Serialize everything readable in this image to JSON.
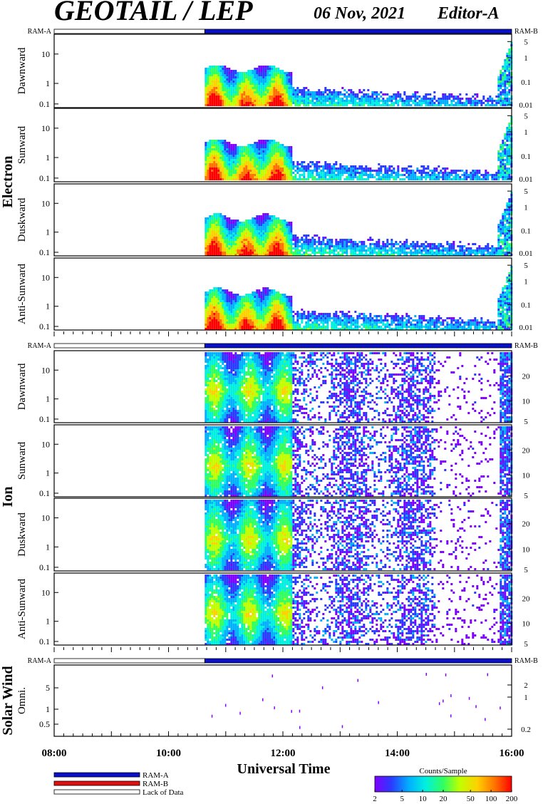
{
  "header": {
    "title": "GEOTAIL / LEP",
    "date": "06 Nov, 2021",
    "editor": "Editor-A"
  },
  "strip": {
    "left_label": "RAM-A",
    "right_label": "RAM-B"
  },
  "groups": {
    "electron": {
      "label": "Electron"
    },
    "ion": {
      "label": "Ion"
    },
    "solar_wind": {
      "label": "Solar Wind"
    }
  },
  "colors": {
    "ram_a": "#0a10c8",
    "ram_b": "#e01010",
    "lack_of_data": "#ffffff",
    "colorbar_stops": [
      "#7f00ff",
      "#2a3aff",
      "#00b0ff",
      "#00f0e0",
      "#30ff60",
      "#c0ff00",
      "#ffd000",
      "#ff7000",
      "#ff0000"
    ]
  },
  "xaxis": {
    "label": "Universal Time",
    "ticks": [
      "08:00",
      "10:00",
      "12:00",
      "14:00",
      "16:00"
    ]
  },
  "legend": {
    "items": [
      {
        "label": "RAM-A",
        "color": "#0a10c8"
      },
      {
        "label": "RAM-B",
        "color": "#e01010"
      },
      {
        "label": "Lack of Data",
        "color": "#ffffff"
      }
    ]
  },
  "colorbar": {
    "title": "Counts/Sample",
    "ticks": [
      "2",
      "5",
      "10",
      "20",
      "50",
      "100",
      "200"
    ]
  },
  "chart_data": {
    "type": "heatmap",
    "x_range_ut": [
      "08:00",
      "16:00"
    ],
    "data_start_ut": "10:38",
    "color_scale": {
      "label": "Counts/Sample",
      "min": 2,
      "max": 200,
      "scale": "log"
    },
    "panels": [
      {
        "group": "Electron",
        "name": "Dawnward",
        "left_ticks": [
          "10",
          "1",
          "0.1"
        ],
        "right_ticks": [
          "5",
          "1",
          "0.1",
          "0.01"
        ]
      },
      {
        "group": "Electron",
        "name": "Sunward",
        "left_ticks": [
          "10",
          "1",
          "0.1"
        ],
        "right_ticks": [
          "5",
          "1",
          "0.1",
          "0.01"
        ]
      },
      {
        "group": "Electron",
        "name": "Duskward",
        "left_ticks": [
          "10",
          "1",
          "0.1"
        ],
        "right_ticks": [
          "5",
          "1",
          "0.1",
          "0.01"
        ]
      },
      {
        "group": "Electron",
        "name": "Anti-Sunward",
        "left_ticks": [
          "10",
          "1",
          "0.1"
        ],
        "right_ticks": [
          "5",
          "1",
          "0.1",
          "0.01"
        ]
      },
      {
        "group": "Ion",
        "name": "Dawnward",
        "left_ticks": [
          "10",
          "1",
          "0.1"
        ],
        "right_ticks": [
          "20",
          "10",
          "5"
        ]
      },
      {
        "group": "Ion",
        "name": "Sunward",
        "left_ticks": [
          "10",
          "1",
          "0.1"
        ],
        "right_ticks": [
          "20",
          "10",
          "5"
        ]
      },
      {
        "group": "Ion",
        "name": "Duskward",
        "left_ticks": [
          "10",
          "1",
          "0.1"
        ],
        "right_ticks": [
          "20",
          "10",
          "5"
        ]
      },
      {
        "group": "Ion",
        "name": "Anti-Sunward",
        "left_ticks": [
          "10",
          "1",
          "0.1"
        ],
        "right_ticks": [
          "20",
          "10",
          "5"
        ]
      },
      {
        "group": "Solar Wind",
        "name": "Omni.",
        "left_ticks": [
          "5",
          "1",
          "0.5"
        ],
        "right_ticks": [
          "2",
          "1",
          "0.2"
        ]
      }
    ]
  }
}
